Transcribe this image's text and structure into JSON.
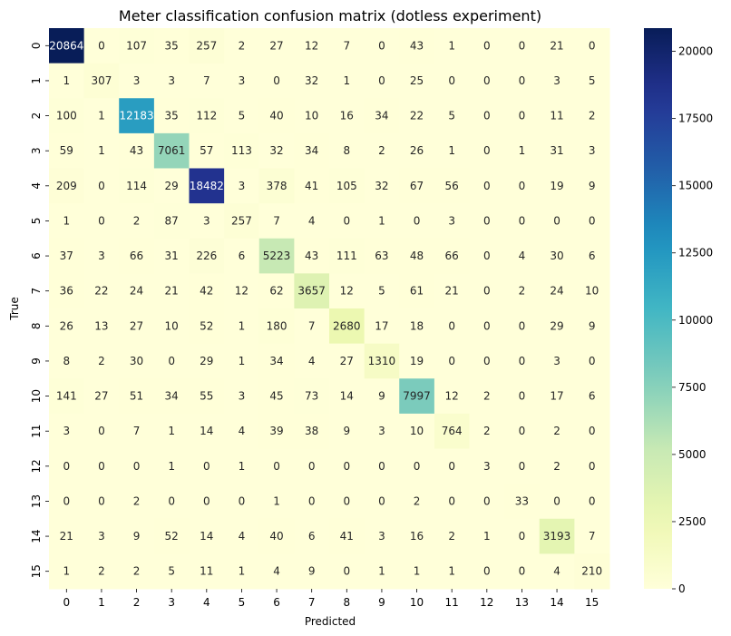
{
  "chart_data": {
    "type": "heatmap",
    "title": "Meter classification confusion matrix (dotless experiment)",
    "xlabel": "Predicted",
    "ylabel": "True",
    "x_categories": [
      "0",
      "1",
      "2",
      "3",
      "4",
      "5",
      "6",
      "7",
      "8",
      "9",
      "10",
      "11",
      "12",
      "13",
      "14",
      "15"
    ],
    "y_categories": [
      "0",
      "1",
      "2",
      "3",
      "4",
      "5",
      "6",
      "7",
      "8",
      "9",
      "10",
      "11",
      "12",
      "13",
      "14",
      "15"
    ],
    "matrix": [
      [
        20864,
        0,
        107,
        35,
        257,
        2,
        27,
        12,
        7,
        0,
        43,
        1,
        0,
        0,
        21,
        0
      ],
      [
        1,
        307,
        3,
        3,
        7,
        3,
        0,
        32,
        1,
        0,
        25,
        0,
        0,
        0,
        3,
        5
      ],
      [
        100,
        1,
        12183,
        35,
        112,
        5,
        40,
        10,
        16,
        34,
        22,
        5,
        0,
        0,
        11,
        2
      ],
      [
        59,
        1,
        43,
        7061,
        57,
        113,
        32,
        34,
        8,
        2,
        26,
        1,
        0,
        1,
        31,
        3
      ],
      [
        209,
        0,
        114,
        29,
        18482,
        3,
        378,
        41,
        105,
        32,
        67,
        56,
        0,
        0,
        19,
        9
      ],
      [
        1,
        0,
        2,
        87,
        3,
        257,
        7,
        4,
        0,
        1,
        0,
        3,
        0,
        0,
        0,
        0
      ],
      [
        37,
        3,
        66,
        31,
        226,
        6,
        5223,
        43,
        111,
        63,
        48,
        66,
        0,
        4,
        30,
        6
      ],
      [
        36,
        22,
        24,
        21,
        42,
        12,
        62,
        3657,
        12,
        5,
        61,
        21,
        0,
        2,
        24,
        10
      ],
      [
        26,
        13,
        27,
        10,
        52,
        1,
        180,
        7,
        2680,
        17,
        18,
        0,
        0,
        0,
        29,
        9
      ],
      [
        8,
        2,
        30,
        0,
        29,
        1,
        34,
        4,
        27,
        1310,
        19,
        0,
        0,
        0,
        3,
        0
      ],
      [
        141,
        27,
        51,
        34,
        55,
        3,
        45,
        73,
        14,
        9,
        7997,
        12,
        2,
        0,
        17,
        6
      ],
      [
        3,
        0,
        7,
        1,
        14,
        4,
        39,
        38,
        9,
        3,
        10,
        764,
        2,
        0,
        2,
        0
      ],
      [
        0,
        0,
        0,
        1,
        0,
        1,
        0,
        0,
        0,
        0,
        0,
        0,
        3,
        0,
        2,
        0
      ],
      [
        0,
        0,
        2,
        0,
        0,
        0,
        1,
        0,
        0,
        0,
        2,
        0,
        0,
        33,
        0,
        0
      ],
      [
        21,
        3,
        9,
        52,
        14,
        4,
        40,
        6,
        41,
        3,
        16,
        2,
        1,
        0,
        3193,
        7
      ],
      [
        1,
        2,
        2,
        5,
        11,
        1,
        4,
        9,
        0,
        1,
        1,
        1,
        0,
        0,
        4,
        210
      ]
    ],
    "colormap": "YlGnBu",
    "colorbar": {
      "vmin": 0,
      "vmax": 20864,
      "ticks": [
        0,
        2500,
        5000,
        7500,
        10000,
        12500,
        15000,
        17500,
        20000
      ]
    },
    "grid": false
  }
}
